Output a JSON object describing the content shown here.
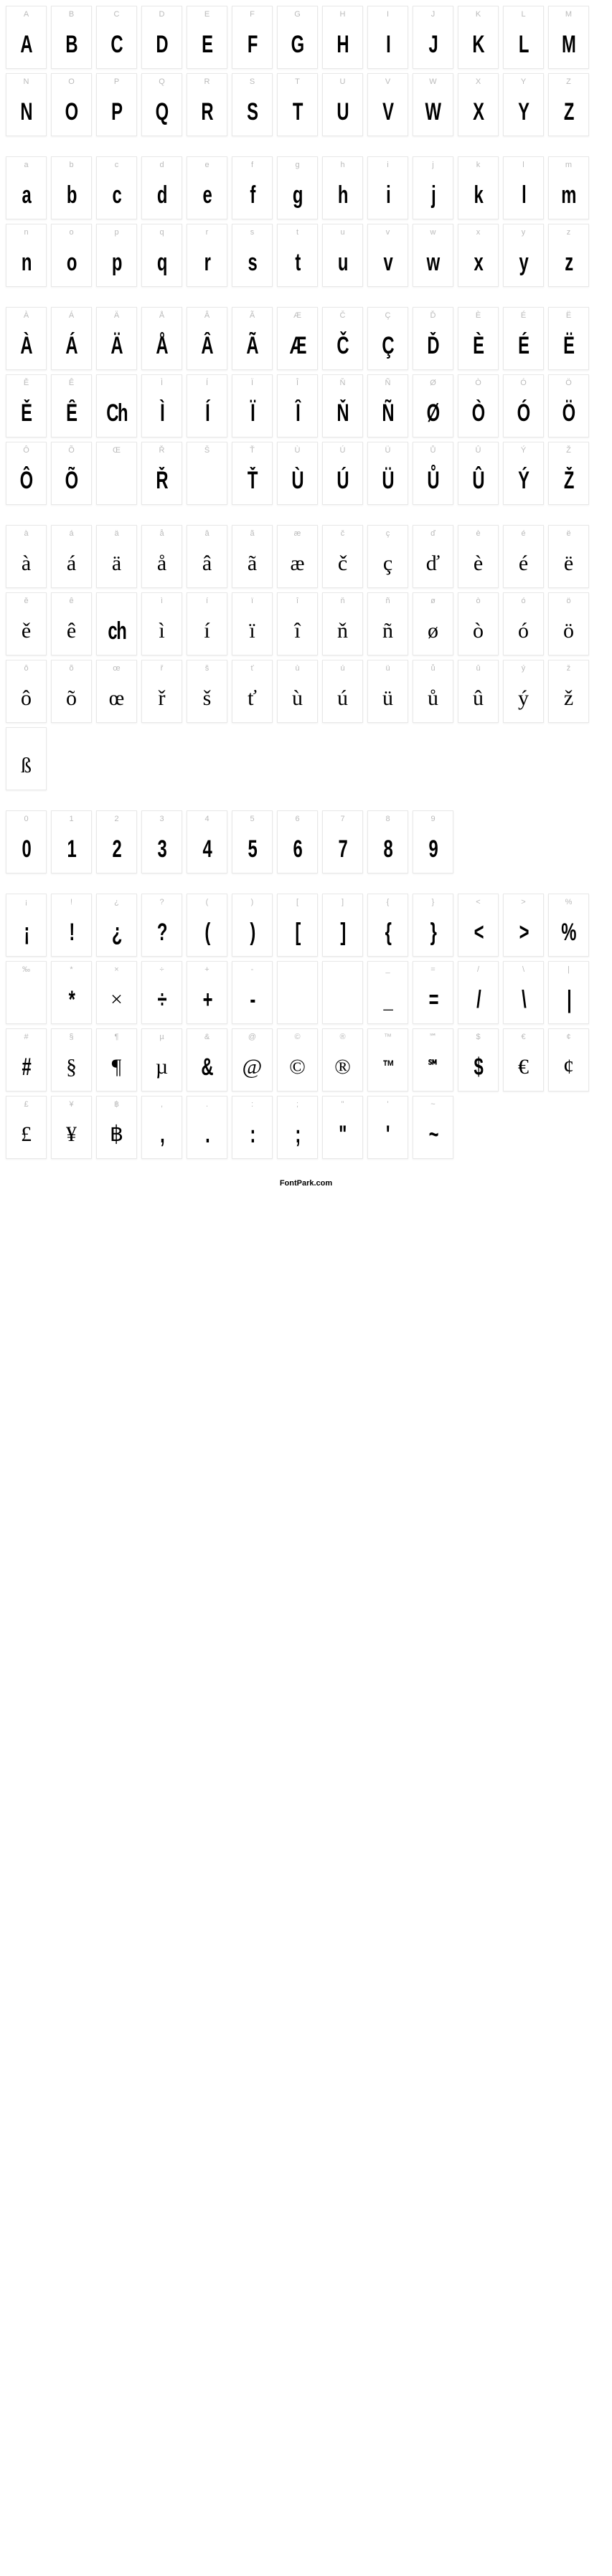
{
  "footer": "FontPark.com",
  "cell_border": "#e8e8e8",
  "label_color": "#bababa",
  "glyph_color": "#000000",
  "background": "#ffffff",
  "sections": [
    {
      "name": "uppercase",
      "cells": [
        {
          "label": "A",
          "glyph": "A"
        },
        {
          "label": "B",
          "glyph": "B"
        },
        {
          "label": "C",
          "glyph": "C"
        },
        {
          "label": "D",
          "glyph": "D"
        },
        {
          "label": "E",
          "glyph": "E"
        },
        {
          "label": "F",
          "glyph": "F"
        },
        {
          "label": "G",
          "glyph": "G"
        },
        {
          "label": "H",
          "glyph": "H"
        },
        {
          "label": "I",
          "glyph": "I"
        },
        {
          "label": "J",
          "glyph": "J"
        },
        {
          "label": "K",
          "glyph": "K"
        },
        {
          "label": "L",
          "glyph": "L"
        },
        {
          "label": "M",
          "glyph": "M"
        },
        {
          "label": "N",
          "glyph": "N"
        },
        {
          "label": "O",
          "glyph": "O"
        },
        {
          "label": "P",
          "glyph": "P"
        },
        {
          "label": "Q",
          "glyph": "Q"
        },
        {
          "label": "R",
          "glyph": "R"
        },
        {
          "label": "S",
          "glyph": "S"
        },
        {
          "label": "T",
          "glyph": "T"
        },
        {
          "label": "U",
          "glyph": "U"
        },
        {
          "label": "V",
          "glyph": "V"
        },
        {
          "label": "W",
          "glyph": "W"
        },
        {
          "label": "X",
          "glyph": "X"
        },
        {
          "label": "Y",
          "glyph": "Y"
        },
        {
          "label": "Z",
          "glyph": "Z"
        }
      ]
    },
    {
      "name": "lowercase",
      "cells": [
        {
          "label": "a",
          "glyph": "a"
        },
        {
          "label": "b",
          "glyph": "b"
        },
        {
          "label": "c",
          "glyph": "c"
        },
        {
          "label": "d",
          "glyph": "d"
        },
        {
          "label": "e",
          "glyph": "e"
        },
        {
          "label": "f",
          "glyph": "f"
        },
        {
          "label": "g",
          "glyph": "g"
        },
        {
          "label": "h",
          "glyph": "h"
        },
        {
          "label": "i",
          "glyph": "i"
        },
        {
          "label": "j",
          "glyph": "j"
        },
        {
          "label": "k",
          "glyph": "k"
        },
        {
          "label": "l",
          "glyph": "l"
        },
        {
          "label": "m",
          "glyph": "m"
        },
        {
          "label": "n",
          "glyph": "n"
        },
        {
          "label": "o",
          "glyph": "o"
        },
        {
          "label": "p",
          "glyph": "p"
        },
        {
          "label": "q",
          "glyph": "q"
        },
        {
          "label": "r",
          "glyph": "r"
        },
        {
          "label": "s",
          "glyph": "s"
        },
        {
          "label": "t",
          "glyph": "t"
        },
        {
          "label": "u",
          "glyph": "u"
        },
        {
          "label": "v",
          "glyph": "v"
        },
        {
          "label": "w",
          "glyph": "w"
        },
        {
          "label": "x",
          "glyph": "x"
        },
        {
          "label": "y",
          "glyph": "y"
        },
        {
          "label": "z",
          "glyph": "z"
        }
      ]
    },
    {
      "name": "uppercase-accents",
      "cells": [
        {
          "label": "À",
          "glyph": "À"
        },
        {
          "label": "Á",
          "glyph": "Á"
        },
        {
          "label": "Ä",
          "glyph": "Ä"
        },
        {
          "label": "Å",
          "glyph": "Å"
        },
        {
          "label": "Â",
          "glyph": "Â"
        },
        {
          "label": "Ã",
          "glyph": "Ã"
        },
        {
          "label": "Æ",
          "glyph": "Æ"
        },
        {
          "label": "Č",
          "glyph": "Č"
        },
        {
          "label": "Ç",
          "glyph": "Ç"
        },
        {
          "label": "Ď",
          "glyph": "Ď"
        },
        {
          "label": "È",
          "glyph": "È"
        },
        {
          "label": "É",
          "glyph": "É"
        },
        {
          "label": "Ë",
          "glyph": "Ë"
        },
        {
          "label": "Ě",
          "glyph": "Ě"
        },
        {
          "label": "Ê",
          "glyph": "Ê"
        },
        {
          "label": "",
          "glyph": "Ch"
        },
        {
          "label": "Ì",
          "glyph": "Ì"
        },
        {
          "label": "Í",
          "glyph": "Í"
        },
        {
          "label": "Ï",
          "glyph": "Ï"
        },
        {
          "label": "Î",
          "glyph": "Î"
        },
        {
          "label": "Ň",
          "glyph": "Ň"
        },
        {
          "label": "Ñ",
          "glyph": "Ñ"
        },
        {
          "label": "Ø",
          "glyph": "Ø"
        },
        {
          "label": "Ò",
          "glyph": "Ò"
        },
        {
          "label": "Ó",
          "glyph": "Ó"
        },
        {
          "label": "Ö",
          "glyph": "Ö"
        },
        {
          "label": "Ô",
          "glyph": "Ô"
        },
        {
          "label": "Õ",
          "glyph": "Õ"
        },
        {
          "label": "Œ",
          "glyph": "",
          "blank": true
        },
        {
          "label": "Ř",
          "glyph": "Ř"
        },
        {
          "label": "Š",
          "glyph": "",
          "blank": true
        },
        {
          "label": "Ť",
          "glyph": "Ť"
        },
        {
          "label": "Ù",
          "glyph": "Ù"
        },
        {
          "label": "Ú",
          "glyph": "Ú"
        },
        {
          "label": "Ü",
          "glyph": "Ü"
        },
        {
          "label": "Ů",
          "glyph": "Ů"
        },
        {
          "label": "Û",
          "glyph": "Û"
        },
        {
          "label": "Ý",
          "glyph": "Ý"
        },
        {
          "label": "Ž",
          "glyph": "Ž"
        }
      ]
    },
    {
      "name": "lowercase-accents",
      "cells": [
        {
          "label": "à",
          "glyph": "à",
          "serif": true
        },
        {
          "label": "á",
          "glyph": "á",
          "serif": true
        },
        {
          "label": "ä",
          "glyph": "ä",
          "serif": true
        },
        {
          "label": "å",
          "glyph": "å",
          "serif": true
        },
        {
          "label": "â",
          "glyph": "â",
          "serif": true
        },
        {
          "label": "ã",
          "glyph": "ã",
          "serif": true
        },
        {
          "label": "æ",
          "glyph": "æ",
          "serif": true
        },
        {
          "label": "č",
          "glyph": "č",
          "serif": true
        },
        {
          "label": "ç",
          "glyph": "ç",
          "serif": true
        },
        {
          "label": "ď",
          "glyph": "ď",
          "serif": true
        },
        {
          "label": "è",
          "glyph": "è",
          "serif": true
        },
        {
          "label": "é",
          "glyph": "é",
          "serif": true
        },
        {
          "label": "ë",
          "glyph": "ë",
          "serif": true
        },
        {
          "label": "ě",
          "glyph": "ě",
          "serif": true
        },
        {
          "label": "ê",
          "glyph": "ê",
          "serif": true
        },
        {
          "label": "",
          "glyph": "ch"
        },
        {
          "label": "ì",
          "glyph": "ì",
          "serif": true
        },
        {
          "label": "í",
          "glyph": "í",
          "serif": true
        },
        {
          "label": "ï",
          "glyph": "ï",
          "serif": true
        },
        {
          "label": "î",
          "glyph": "î",
          "serif": true
        },
        {
          "label": "ň",
          "glyph": "ň",
          "serif": true
        },
        {
          "label": "ñ",
          "glyph": "ñ",
          "serif": true
        },
        {
          "label": "ø",
          "glyph": "ø",
          "serif": true
        },
        {
          "label": "ò",
          "glyph": "ò",
          "serif": true
        },
        {
          "label": "ó",
          "glyph": "ó",
          "serif": true
        },
        {
          "label": "ö",
          "glyph": "ö",
          "serif": true
        },
        {
          "label": "ô",
          "glyph": "ô",
          "serif": true
        },
        {
          "label": "õ",
          "glyph": "õ",
          "serif": true
        },
        {
          "label": "œ",
          "glyph": "œ",
          "serif": true
        },
        {
          "label": "ř",
          "glyph": "ř",
          "serif": true
        },
        {
          "label": "š",
          "glyph": "š",
          "serif": true
        },
        {
          "label": "ť",
          "glyph": "ť",
          "serif": true
        },
        {
          "label": "ù",
          "glyph": "ù",
          "serif": true
        },
        {
          "label": "ú",
          "glyph": "ú",
          "serif": true
        },
        {
          "label": "ü",
          "glyph": "ü",
          "serif": true
        },
        {
          "label": "ů",
          "glyph": "ů",
          "serif": true
        },
        {
          "label": "û",
          "glyph": "û",
          "serif": true
        },
        {
          "label": "ý",
          "glyph": "ý",
          "serif": true
        },
        {
          "label": "ž",
          "glyph": "ž",
          "serif": true
        },
        {
          "label": "",
          "glyph": "ß",
          "serif": true
        }
      ]
    },
    {
      "name": "digits",
      "cells": [
        {
          "label": "0",
          "glyph": "0"
        },
        {
          "label": "1",
          "glyph": "1"
        },
        {
          "label": "2",
          "glyph": "2"
        },
        {
          "label": "3",
          "glyph": "3"
        },
        {
          "label": "4",
          "glyph": "4"
        },
        {
          "label": "5",
          "glyph": "5"
        },
        {
          "label": "6",
          "glyph": "6"
        },
        {
          "label": "7",
          "glyph": "7"
        },
        {
          "label": "8",
          "glyph": "8"
        },
        {
          "label": "9",
          "glyph": "9"
        }
      ]
    },
    {
      "name": "symbols",
      "cells": [
        {
          "label": "¡",
          "glyph": "¡"
        },
        {
          "label": "!",
          "glyph": "!"
        },
        {
          "label": "¿",
          "glyph": "¿"
        },
        {
          "label": "?",
          "glyph": "?"
        },
        {
          "label": "(",
          "glyph": "("
        },
        {
          "label": ")",
          "glyph": ")"
        },
        {
          "label": "[",
          "glyph": "["
        },
        {
          "label": "]",
          "glyph": "]"
        },
        {
          "label": "{",
          "glyph": "{"
        },
        {
          "label": "}",
          "glyph": "}"
        },
        {
          "label": "<",
          "glyph": "<"
        },
        {
          "label": ">",
          "glyph": ">"
        },
        {
          "label": "%",
          "glyph": "%"
        },
        {
          "label": "‰",
          "glyph": "",
          "blank": true
        },
        {
          "label": "*",
          "glyph": "*"
        },
        {
          "label": "×",
          "glyph": "×",
          "serif": true
        },
        {
          "label": "÷",
          "glyph": "÷"
        },
        {
          "label": "+",
          "glyph": "+"
        },
        {
          "label": "-",
          "glyph": "-"
        },
        {
          "label": "",
          "glyph": "",
          "blank": true
        },
        {
          "label": "",
          "glyph": "",
          "blank": true
        },
        {
          "label": "_",
          "glyph": "_"
        },
        {
          "label": "=",
          "glyph": "="
        },
        {
          "label": "/",
          "glyph": "/"
        },
        {
          "label": "\\",
          "glyph": "\\"
        },
        {
          "label": "|",
          "glyph": "|"
        },
        {
          "label": "#",
          "glyph": "#"
        },
        {
          "label": "§",
          "glyph": "§",
          "serif": true
        },
        {
          "label": "¶",
          "glyph": "¶",
          "serif": true
        },
        {
          "label": "µ",
          "glyph": "µ",
          "serif": true
        },
        {
          "label": "&",
          "glyph": "&"
        },
        {
          "label": "@",
          "glyph": "@",
          "serif": true
        },
        {
          "label": "©",
          "glyph": "©",
          "serif": true
        },
        {
          "label": "®",
          "glyph": "®",
          "serif": true
        },
        {
          "label": "™",
          "glyph": "™",
          "small": true
        },
        {
          "label": "℠",
          "glyph": "℠",
          "small": true
        },
        {
          "label": "$",
          "glyph": "$"
        },
        {
          "label": "€",
          "glyph": "€",
          "serif": true
        },
        {
          "label": "¢",
          "glyph": "¢",
          "serif": true
        },
        {
          "label": "£",
          "glyph": "£",
          "serif": true
        },
        {
          "label": "¥",
          "glyph": "¥",
          "serif": true
        },
        {
          "label": "฿",
          "glyph": "฿",
          "serif": true
        },
        {
          "label": ",",
          "glyph": ","
        },
        {
          "label": ".",
          "glyph": "."
        },
        {
          "label": ":",
          "glyph": ":"
        },
        {
          "label": ";",
          "glyph": ";"
        },
        {
          "label": "\"",
          "glyph": "\""
        },
        {
          "label": "'",
          "glyph": "'"
        },
        {
          "label": "~",
          "glyph": "~"
        }
      ]
    }
  ]
}
